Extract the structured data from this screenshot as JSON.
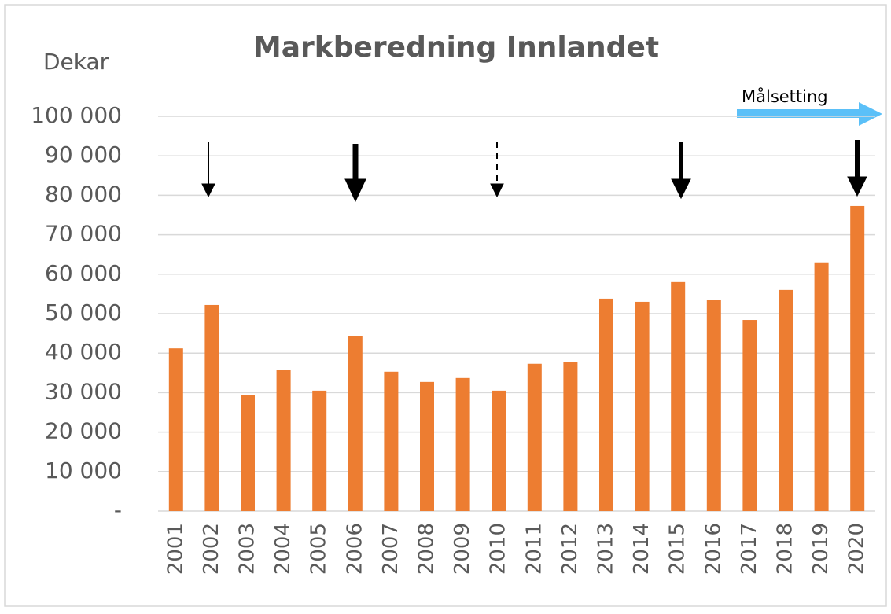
{
  "chart_data": {
    "type": "bar",
    "title": "Markberedning Innlandet",
    "y_label": "Dekar",
    "annotation": "Målsetting",
    "categories": [
      "2001",
      "2002",
      "2003",
      "2004",
      "2005",
      "2006",
      "2007",
      "2008",
      "2009",
      "2010",
      "2011",
      "2012",
      "2013",
      "2014",
      "2015",
      "2016",
      "2017",
      "2018",
      "2019",
      "2020"
    ],
    "values": [
      41200,
      52200,
      29300,
      35700,
      30500,
      44400,
      35300,
      32700,
      33700,
      30500,
      37300,
      37800,
      53800,
      53000,
      58000,
      53400,
      48400,
      56000,
      63000,
      77300
    ],
    "color": "#ed7d31",
    "ylim": [
      0,
      100000
    ],
    "yticks": [
      {
        "value": 0,
        "label": "-"
      },
      {
        "value": 10000,
        "label": "10 000"
      },
      {
        "value": 20000,
        "label": "20 000"
      },
      {
        "value": 30000,
        "label": "30 000"
      },
      {
        "value": 40000,
        "label": "40 000"
      },
      {
        "value": 50000,
        "label": "50 000"
      },
      {
        "value": 60000,
        "label": "60 000"
      },
      {
        "value": 70000,
        "label": "70 000"
      },
      {
        "value": 80000,
        "label": "80 000"
      },
      {
        "value": 90000,
        "label": "90 000"
      },
      {
        "value": 100000,
        "label": "100 000"
      }
    ],
    "grid": true
  }
}
